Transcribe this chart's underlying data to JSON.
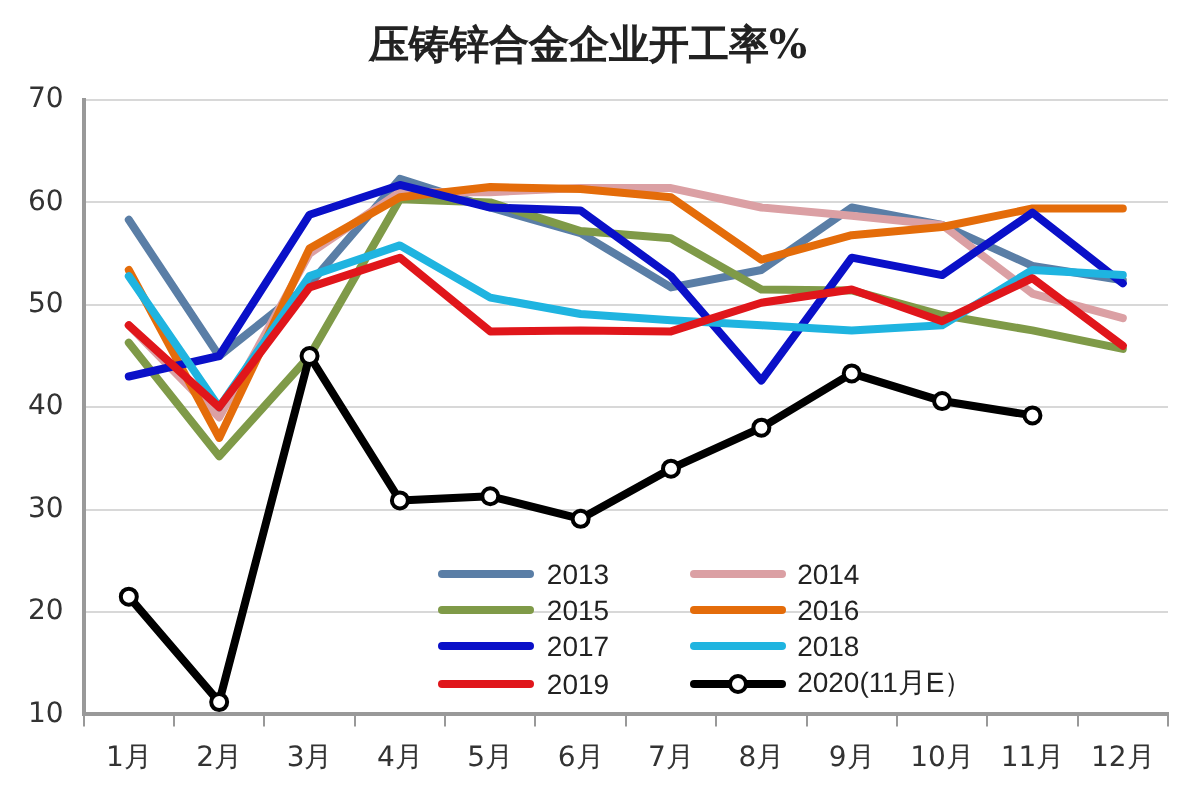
{
  "chart_data": {
    "type": "line",
    "title": "压铸锌合金企业开工率%",
    "categories": [
      "1月",
      "2月",
      "3月",
      "4月",
      "5月",
      "6月",
      "7月",
      "8月",
      "9月",
      "10月",
      "11月",
      "12月"
    ],
    "ylim": [
      10,
      70
    ],
    "yticks": [
      10,
      20,
      30,
      40,
      50,
      60,
      70
    ],
    "grid": "y",
    "legend": "bottom",
    "line_style": "solid",
    "series": [
      {
        "name": "2013",
        "color": "#5a7ea6",
        "values": [
          58.3,
          45,
          52,
          62.3,
          59.5,
          57,
          51.7,
          53.4,
          59.5,
          57.8,
          53.8,
          52.4
        ]
      },
      {
        "name": "2014",
        "color": "#dba0a4",
        "values": [
          48,
          39,
          55,
          61,
          61,
          61.4,
          61.4,
          59.5,
          58.7,
          57.8,
          51.1,
          48.7
        ]
      },
      {
        "name": "2015",
        "color": "#7f9a48",
        "values": [
          46.3,
          35.2,
          45,
          60.3,
          60,
          57.2,
          56.5,
          51.5,
          51.4,
          49,
          47.5,
          45.7
        ]
      },
      {
        "name": "2016",
        "color": "#e46c0a",
        "values": [
          53.4,
          37,
          55.5,
          60.5,
          61.5,
          61.3,
          60.5,
          54.4,
          56.8,
          57.6,
          59.4,
          59.4
        ]
      },
      {
        "name": "2017",
        "color": "#0a10c8",
        "values": [
          43,
          45,
          58.8,
          61.7,
          59.5,
          59.2,
          52.8,
          42.6,
          54.6,
          52.9,
          59,
          52.1
        ]
      },
      {
        "name": "2018",
        "color": "#1fb4e0",
        "values": [
          52.8,
          40,
          52.8,
          55.8,
          50.7,
          49.1,
          48.5,
          48,
          47.5,
          48,
          53.4,
          52.9
        ]
      },
      {
        "name": "2019",
        "color": "#e0161b",
        "values": [
          48,
          40,
          51.7,
          54.6,
          47.4,
          47.5,
          47.4,
          50.2,
          51.5,
          48.4,
          52.6,
          46
        ]
      },
      {
        "name": "2020(11月E）",
        "color": "#000000",
        "marker": "circle",
        "values": [
          21.5,
          11.2,
          45,
          30.9,
          31.3,
          29.1,
          34,
          38,
          43.3,
          40.6,
          39.2,
          null
        ]
      }
    ]
  }
}
